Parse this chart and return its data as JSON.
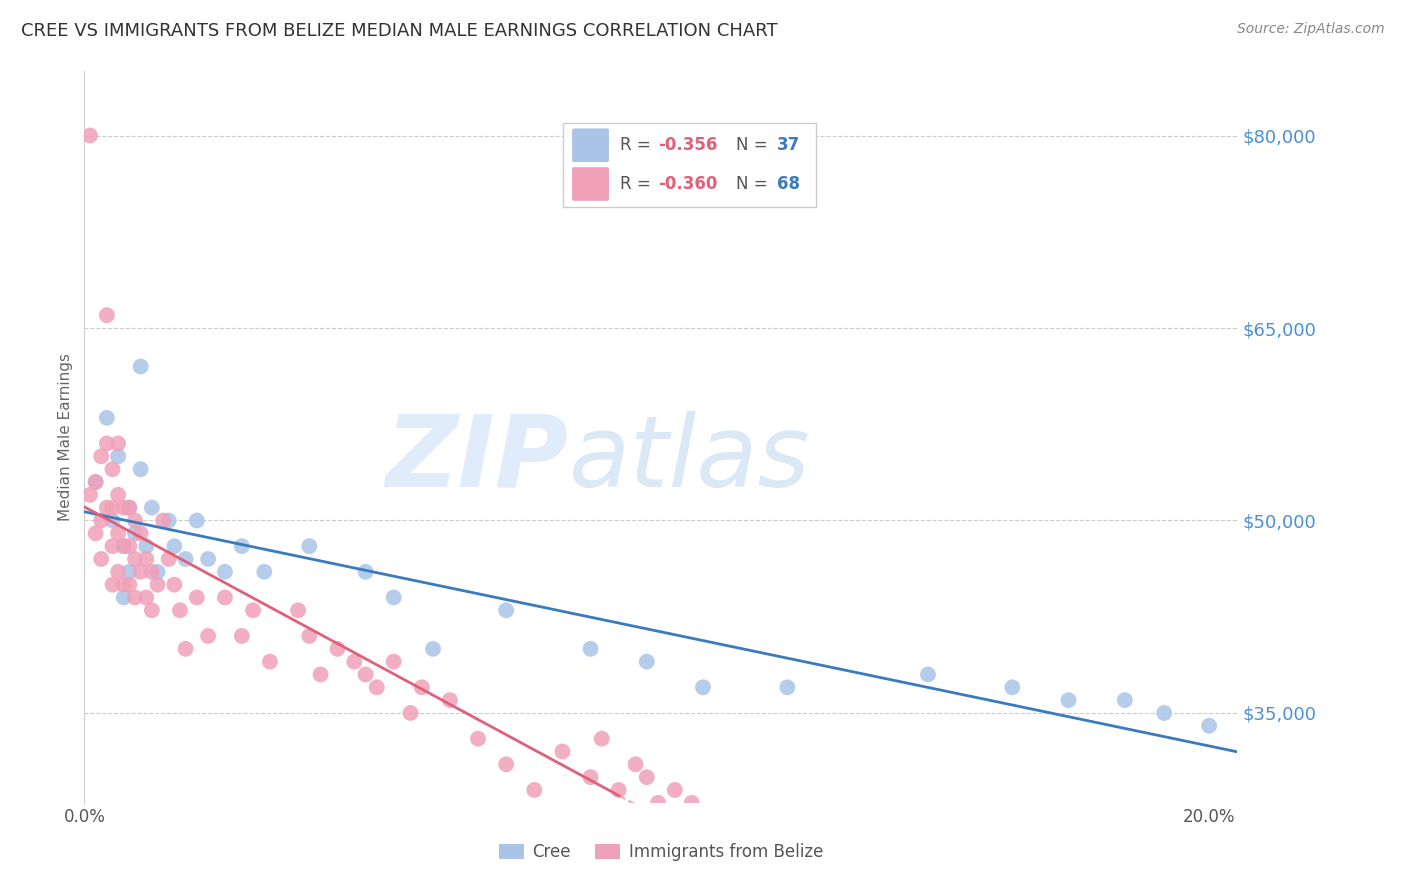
{
  "title": "CREE VS IMMIGRANTS FROM BELIZE MEDIAN MALE EARNINGS CORRELATION CHART",
  "source": "Source: ZipAtlas.com",
  "ylabel": "Median Male Earnings",
  "xlim": [
    0.0,
    0.205
  ],
  "ylim": [
    28000,
    85000
  ],
  "xticks": [
    0.0,
    0.05,
    0.1,
    0.15,
    0.2
  ],
  "xticklabels": [
    "0.0%",
    "",
    "",
    "",
    "20.0%"
  ],
  "yticks_right": [
    35000,
    50000,
    65000,
    80000
  ],
  "ytick_labels_right": [
    "$35,000",
    "$50,000",
    "$65,000",
    "$80,000"
  ],
  "grid_color": "#cccccc",
  "background_color": "#ffffff",
  "cree_color": "#aac4e8",
  "cree_trend_color": "#3a7abf",
  "belize_color": "#f0a0b8",
  "belize_trend_color": "#e0607a",
  "cree_R": "-0.356",
  "cree_N": "37",
  "belize_R": "-0.360",
  "belize_N": "68",
  "R_color": "#e0607a",
  "N_color": "#3a7abf",
  "title_color": "#333333",
  "source_color": "#888888",
  "axis_label_color": "#666666",
  "right_ytick_color": "#4a90d9",
  "cree_x": [
    0.002,
    0.004,
    0.005,
    0.006,
    0.007,
    0.007,
    0.008,
    0.008,
    0.009,
    0.01,
    0.01,
    0.011,
    0.012,
    0.013,
    0.015,
    0.016,
    0.018,
    0.02,
    0.022,
    0.025,
    0.028,
    0.032,
    0.04,
    0.05,
    0.055,
    0.062,
    0.075,
    0.09,
    0.1,
    0.11,
    0.125,
    0.15,
    0.165,
    0.175,
    0.185,
    0.192,
    0.2
  ],
  "cree_y": [
    53000,
    58000,
    50000,
    55000,
    48000,
    44000,
    51000,
    46000,
    49000,
    62000,
    54000,
    48000,
    51000,
    46000,
    50000,
    48000,
    47000,
    50000,
    47000,
    46000,
    48000,
    46000,
    48000,
    46000,
    44000,
    40000,
    43000,
    40000,
    39000,
    37000,
    37000,
    38000,
    37000,
    36000,
    36000,
    35000,
    34000
  ],
  "belize_x": [
    0.001,
    0.001,
    0.002,
    0.002,
    0.003,
    0.003,
    0.003,
    0.004,
    0.004,
    0.004,
    0.005,
    0.005,
    0.005,
    0.005,
    0.006,
    0.006,
    0.006,
    0.006,
    0.007,
    0.007,
    0.007,
    0.008,
    0.008,
    0.008,
    0.009,
    0.009,
    0.009,
    0.01,
    0.01,
    0.011,
    0.011,
    0.012,
    0.012,
    0.013,
    0.014,
    0.015,
    0.016,
    0.017,
    0.018,
    0.02,
    0.022,
    0.025,
    0.028,
    0.03,
    0.033,
    0.038,
    0.04,
    0.042,
    0.045,
    0.048,
    0.05,
    0.052,
    0.055,
    0.058,
    0.06,
    0.065,
    0.07,
    0.075,
    0.08,
    0.085,
    0.09,
    0.092,
    0.095,
    0.098,
    0.1,
    0.102,
    0.105,
    0.108
  ],
  "belize_y": [
    80000,
    52000,
    53000,
    49000,
    55000,
    50000,
    47000,
    66000,
    56000,
    51000,
    54000,
    51000,
    48000,
    45000,
    56000,
    52000,
    49000,
    46000,
    51000,
    48000,
    45000,
    51000,
    48000,
    45000,
    50000,
    47000,
    44000,
    49000,
    46000,
    47000,
    44000,
    46000,
    43000,
    45000,
    50000,
    47000,
    45000,
    43000,
    40000,
    44000,
    41000,
    44000,
    41000,
    43000,
    39000,
    43000,
    41000,
    38000,
    40000,
    39000,
    38000,
    37000,
    39000,
    35000,
    37000,
    36000,
    33000,
    31000,
    29000,
    32000,
    30000,
    33000,
    29000,
    31000,
    30000,
    28000,
    29000,
    28000
  ]
}
